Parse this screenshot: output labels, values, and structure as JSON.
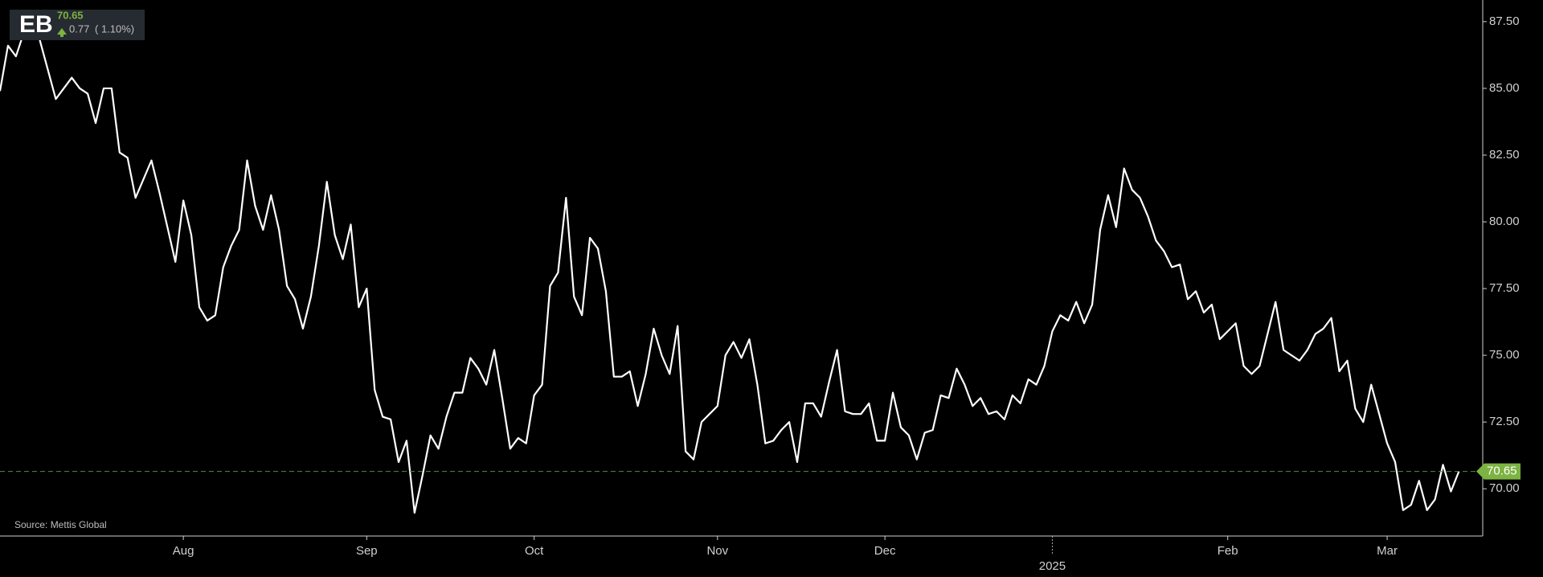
{
  "chart_data": {
    "type": "line",
    "title": "EB",
    "change": 0.77,
    "change_percent_label": "( 1.10%)",
    "source": "Source: Mettis Global",
    "color": "#ffffff",
    "last_color": "#7cb342",
    "categories": [
      null,
      null,
      null,
      null,
      null,
      null,
      null,
      null,
      null,
      null,
      null,
      null,
      null,
      null,
      null,
      null,
      null,
      null,
      null,
      null,
      null,
      null,
      null,
      "Aug",
      null,
      null,
      null,
      null,
      null,
      null,
      null,
      null,
      null,
      null,
      null,
      null,
      null,
      null,
      null,
      null,
      null,
      null,
      null,
      null,
      null,
      null,
      "Sep",
      null,
      null,
      null,
      null,
      null,
      null,
      null,
      null,
      null,
      null,
      null,
      null,
      null,
      null,
      null,
      null,
      null,
      null,
      null,
      null,
      "Oct",
      null,
      null,
      null,
      null,
      null,
      null,
      null,
      null,
      null,
      null,
      null,
      null,
      null,
      null,
      null,
      null,
      null,
      null,
      null,
      null,
      null,
      null,
      "Nov",
      null,
      null,
      null,
      null,
      null,
      null,
      null,
      null,
      null,
      null,
      null,
      null,
      null,
      null,
      null,
      null,
      null,
      null,
      null,
      null,
      "Dec",
      null,
      null,
      null,
      null,
      null,
      null,
      null,
      null,
      null,
      null,
      null,
      null,
      null,
      null,
      null,
      null,
      null,
      null,
      null,
      null,
      "2025",
      null,
      null,
      null,
      null,
      null,
      null,
      null,
      null,
      null,
      null,
      null,
      null,
      null,
      null,
      null,
      null,
      null,
      null,
      null,
      null,
      null,
      "Feb",
      null,
      null,
      null,
      null,
      null,
      null,
      null,
      null,
      null,
      null,
      null,
      null,
      null,
      null,
      null,
      null,
      null,
      null,
      null,
      "Mar",
      null,
      null,
      null,
      null,
      null,
      null,
      null,
      null,
      null
    ],
    "values": [
      84.9,
      86.6,
      86.2,
      87.1,
      87.6,
      86.8,
      85.7,
      84.6,
      85.0,
      85.4,
      85.0,
      84.8,
      83.7,
      85.0,
      85.0,
      82.6,
      82.4,
      80.9,
      81.6,
      82.3,
      81.1,
      79.8,
      78.5,
      80.8,
      79.5,
      76.8,
      76.3,
      76.5,
      78.3,
      79.1,
      79.7,
      82.3,
      80.6,
      79.7,
      81.0,
      79.7,
      77.6,
      77.1,
      76.0,
      77.2,
      79.1,
      81.5,
      79.5,
      78.6,
      79.9,
      76.8,
      77.5,
      73.7,
      72.7,
      72.6,
      71.0,
      71.8,
      69.1,
      70.5,
      72.0,
      71.5,
      72.7,
      73.6,
      73.6,
      74.9,
      74.5,
      73.9,
      75.2,
      73.4,
      71.5,
      71.9,
      71.7,
      73.5,
      73.9,
      77.6,
      78.1,
      80.9,
      77.2,
      76.5,
      79.4,
      79.0,
      77.4,
      74.2,
      74.2,
      74.4,
      73.1,
      74.3,
      76.0,
      75.0,
      74.3,
      76.1,
      71.4,
      71.1,
      72.5,
      72.8,
      73.1,
      75.0,
      75.5,
      74.9,
      75.6,
      73.9,
      71.7,
      71.8,
      72.2,
      72.5,
      71.0,
      73.2,
      73.2,
      72.7,
      74.0,
      75.2,
      72.9,
      72.8,
      72.8,
      73.2,
      71.8,
      71.8,
      73.6,
      72.3,
      72.0,
      71.1,
      72.1,
      72.2,
      73.5,
      73.4,
      74.5,
      73.9,
      73.1,
      73.4,
      72.8,
      72.9,
      72.6,
      73.5,
      73.2,
      74.1,
      73.9,
      74.6,
      75.9,
      76.5,
      76.3,
      77.0,
      76.2,
      76.9,
      79.7,
      81.0,
      79.8,
      82.0,
      81.2,
      80.9,
      80.2,
      79.3,
      78.9,
      78.3,
      78.4,
      77.1,
      77.4,
      76.6,
      76.9,
      75.6,
      75.9,
      76.2,
      74.6,
      74.3,
      74.6,
      75.8,
      77.0,
      75.2,
      75.0,
      74.8,
      75.2,
      75.8,
      76.0,
      76.4,
      74.4,
      74.8,
      73.0,
      72.5,
      73.9,
      72.8,
      71.7,
      71.0,
      69.2,
      69.4,
      70.3,
      69.2,
      69.6,
      70.9,
      69.9,
      70.65
    ],
    "ylim": [
      68.23,
      88.31
    ],
    "yticks": [
      {
        "value": 70,
        "label": "70.00"
      },
      {
        "value": 72.5,
        "label": "72.50"
      },
      {
        "value": 75,
        "label": "75.00"
      },
      {
        "value": 77.5,
        "label": "77.50"
      },
      {
        "value": 80,
        "label": "80.00"
      },
      {
        "value": 82.5,
        "label": "82.50"
      },
      {
        "value": 85,
        "label": "85.00"
      },
      {
        "value": 87.5,
        "label": "87.50"
      }
    ]
  }
}
